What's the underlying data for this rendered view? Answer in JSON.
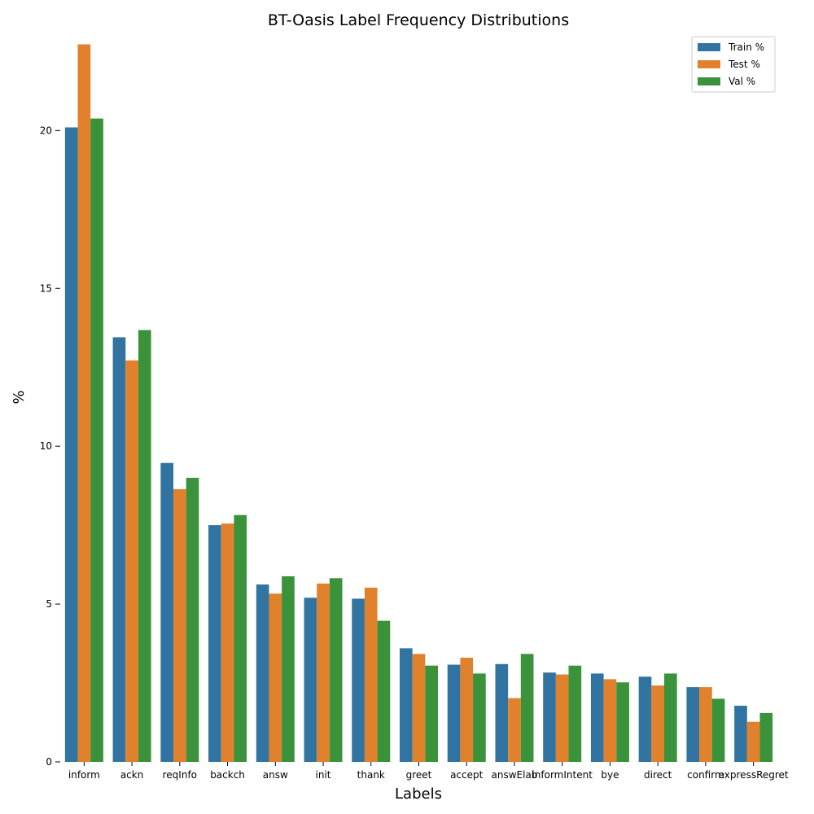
{
  "chart_data": {
    "type": "bar",
    "title": "BT-Oasis Label Frequency Distributions",
    "xlabel": "Labels",
    "ylabel": "%",
    "ylim": [
      0,
      23
    ],
    "yticks": [
      0,
      5,
      10,
      15,
      20
    ],
    "grid": false,
    "legend_position": "top-right",
    "categories": [
      "inform",
      "ackn",
      "reqInfo",
      "backch",
      "answ",
      "init",
      "thank",
      "greet",
      "accept",
      "answElab",
      "informIntent",
      "bye",
      "direct",
      "confirm",
      "expressRegret"
    ],
    "series": [
      {
        "name": "Train %",
        "color": "#3274a1",
        "values": [
          20.1,
          13.45,
          9.47,
          7.5,
          5.62,
          5.2,
          5.17,
          3.6,
          3.08,
          3.1,
          2.83,
          2.8,
          2.7,
          2.37,
          1.78
        ]
      },
      {
        "name": "Test %",
        "color": "#e1812c",
        "values": [
          22.73,
          12.72,
          8.64,
          7.55,
          5.33,
          5.65,
          5.52,
          3.42,
          3.3,
          2.02,
          2.77,
          2.62,
          2.42,
          2.37,
          1.27
        ]
      },
      {
        "name": "Val %",
        "color": "#3a923a",
        "values": [
          20.38,
          13.68,
          9.0,
          7.82,
          5.88,
          5.82,
          4.47,
          3.05,
          2.8,
          3.42,
          3.05,
          2.52,
          2.8,
          2.0,
          1.55
        ]
      }
    ]
  }
}
